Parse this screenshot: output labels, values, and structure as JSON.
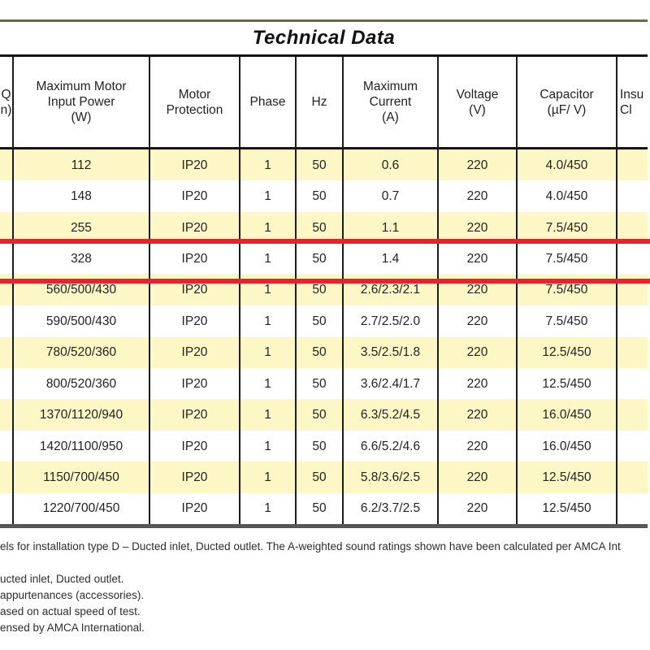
{
  "title_bar": {
    "text": "Technical Data",
    "background": "#ffef00"
  },
  "table": {
    "columns": [
      {
        "id": "airflow-clipped",
        "header_lines": [
          "Q",
          "n)"
        ],
        "clipped": "left"
      },
      {
        "id": "max-motor-input-power",
        "header_lines": [
          "Maximum Motor",
          "Input Power",
          "(W)"
        ]
      },
      {
        "id": "motor-protection",
        "header_lines": [
          "Motor",
          "Protection"
        ]
      },
      {
        "id": "phase",
        "header_lines": [
          "Phase"
        ]
      },
      {
        "id": "hz",
        "header_lines": [
          "Hz"
        ]
      },
      {
        "id": "maximum-current",
        "header_lines": [
          "Maximum",
          "Current",
          "(A)"
        ]
      },
      {
        "id": "voltage",
        "header_lines": [
          "Voltage",
          "(V)"
        ]
      },
      {
        "id": "capacitor",
        "header_lines": [
          "Capacitor",
          "(µF/ V)"
        ]
      },
      {
        "id": "insulation-class-clipped",
        "header_lines": [
          "Insu",
          "Cl"
        ],
        "clipped": "right"
      }
    ],
    "rows": [
      [
        "",
        "112",
        "IP20",
        "1",
        "50",
        "0.6",
        "220",
        "4.0/450",
        ""
      ],
      [
        "",
        "148",
        "IP20",
        "1",
        "50",
        "0.7",
        "220",
        "4.0/450",
        ""
      ],
      [
        "",
        "255",
        "IP20",
        "1",
        "50",
        "1.1",
        "220",
        "7.5/450",
        ""
      ],
      [
        "",
        "328",
        "IP20",
        "1",
        "50",
        "1.4",
        "220",
        "7.5/450",
        ""
      ],
      [
        "",
        "560/500/430",
        "IP20",
        "1",
        "50",
        "2.6/2.3/2.1",
        "220",
        "7.5/450",
        ""
      ],
      [
        "",
        "590/500/430",
        "IP20",
        "1",
        "50",
        "2.7/2.5/2.0",
        "220",
        "7.5/450",
        ""
      ],
      [
        "",
        "780/520/360",
        "IP20",
        "1",
        "50",
        "3.5/2.5/1.8",
        "220",
        "12.5/450",
        ""
      ],
      [
        "",
        "800/520/360",
        "IP20",
        "1",
        "50",
        "3.6/2.4/1.7",
        "220",
        "12.5/450",
        ""
      ],
      [
        "",
        "1370/1120/940",
        "IP20",
        "1",
        "50",
        "6.3/5.2/4.5",
        "220",
        "16.0/450",
        ""
      ],
      [
        "",
        "1420/1100/950",
        "IP20",
        "1",
        "50",
        "6.6/5.2/4.6",
        "220",
        "16.0/450",
        ""
      ],
      [
        "",
        "1150/700/450",
        "IP20",
        "1",
        "50",
        "5.8/3.6/2.5",
        "220",
        "12.5/450",
        ""
      ],
      [
        "",
        "1220/700/450",
        "IP20",
        "1",
        "50",
        "6.2/3.7/2.5",
        "220",
        "12.5/450",
        ""
      ]
    ],
    "highlighted_row_index": 3,
    "highlight_color": "#e8232b",
    "stripe_color": "#fdf7c6"
  },
  "footnotes": {
    "lines": [
      "els for installation type D – Ducted inlet, Ducted outlet. The A-weighted sound ratings shown have been calculated per AMCA Int",
      "ucted inlet, Ducted outlet.",
      "appurtenances (accessories).",
      "ased on actual speed of test.",
      "ensed by AMCA International."
    ]
  }
}
